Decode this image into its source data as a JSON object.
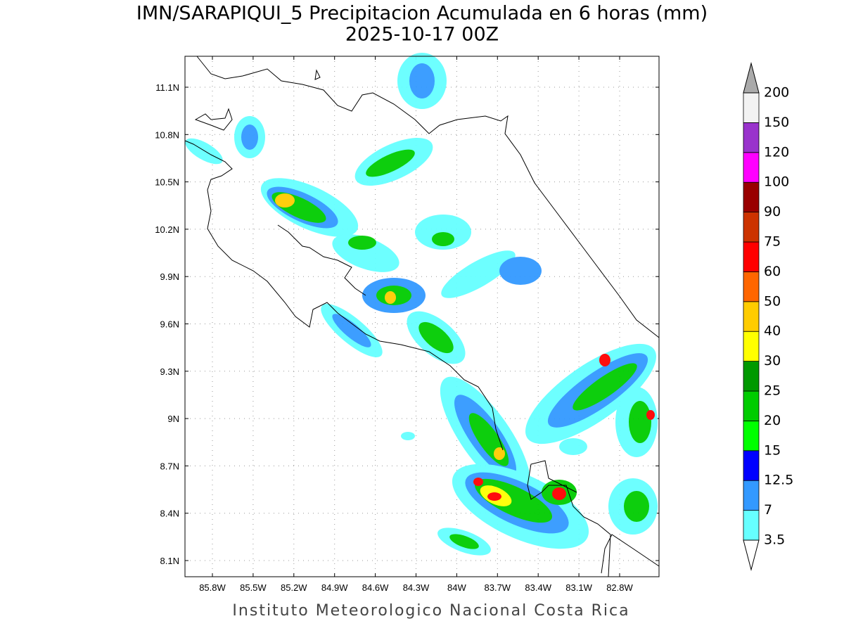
{
  "map": {
    "title": "IMN/SARAPIQUI_5 Precipitacion Acumulada en 6 horas (mm)",
    "subtitle": "2025-10-17 00Z",
    "lat_labels": [
      "11.1N",
      "10.8N",
      "10.5N",
      "10.2N",
      "9.9N",
      "9.6N",
      "9.3N",
      "9N",
      "8.7N",
      "8.4N",
      "8.1N"
    ],
    "lon_labels": [
      "85.8W",
      "85.5W",
      "85.2W",
      "84.9W",
      "84.6W",
      "84.3W",
      "84W",
      "83.7W",
      "83.4W",
      "83.1W",
      "82.8W"
    ],
    "colorbar": {
      "labels": [
        "3.5",
        "7",
        "12.5",
        "15",
        "20",
        "25",
        "30",
        "40",
        "50",
        "60",
        "75",
        "90",
        "100",
        "120",
        "150",
        "200"
      ],
      "colors": [
        "#66ffff",
        "#3399ff",
        "#0000ff",
        "#00ff00",
        "#00cc00",
        "#009900",
        "#ffff00",
        "#ffcc00",
        "#ff6600",
        "#ff0000",
        "#cc3300",
        "#990000",
        "#ff00ff",
        "#9933cc",
        "#f2f2f2"
      ],
      "under_color": "#ffffff",
      "over_color": "#aaaaaa"
    },
    "footer": "Instituto Meteorologico Nacional Costa Rica"
  }
}
